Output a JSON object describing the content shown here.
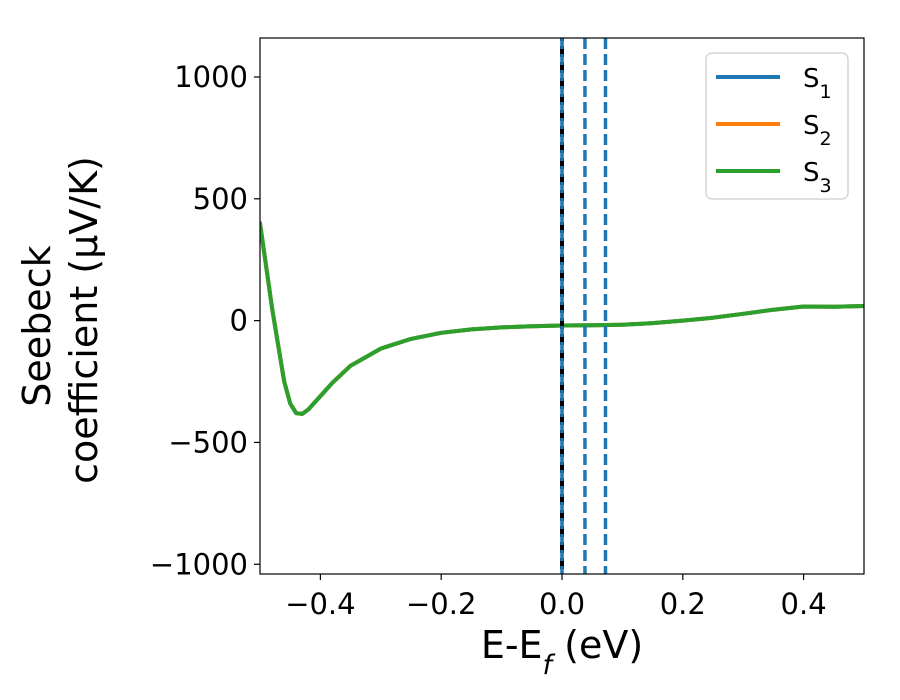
{
  "chart_data": {
    "type": "line",
    "xlabel": "E-E_f (eV)",
    "ylabel": "Seebeck coefficient  (μV/K)",
    "ylabel_lines": [
      "Seebeck",
      "coefficient  (μV/K)"
    ],
    "xlim": [
      -0.5,
      0.5
    ],
    "ylim": [
      -1040,
      1160
    ],
    "x_ticks": [
      -0.4,
      -0.2,
      0.0,
      0.2,
      0.4
    ],
    "x_tick_labels": [
      "−0.4",
      "−0.2",
      "0.0",
      "0.2",
      "0.4"
    ],
    "y_ticks": [
      1000,
      500,
      0,
      -500,
      -1000
    ],
    "y_tick_labels": [
      "1000",
      "500",
      "0",
      "−500",
      "−1000"
    ],
    "grid": false,
    "legend_position": "top-right",
    "vertical_lines": [
      {
        "x": 0.0,
        "style": "dashed",
        "color": "#000000"
      },
      {
        "x": 0.0,
        "style": "dashed",
        "color": "#1f77b4"
      },
      {
        "x": 0.038,
        "style": "dashed",
        "color": "#1f77b4"
      },
      {
        "x": 0.072,
        "style": "dashed",
        "color": "#1f77b4"
      }
    ],
    "x": [
      -0.5,
      -0.48,
      -0.46,
      -0.45,
      -0.44,
      -0.43,
      -0.42,
      -0.4,
      -0.38,
      -0.35,
      -0.3,
      -0.25,
      -0.2,
      -0.15,
      -0.1,
      -0.05,
      0.0,
      0.05,
      0.1,
      0.15,
      0.2,
      0.25,
      0.3,
      0.35,
      0.4,
      0.45,
      0.5
    ],
    "series": [
      {
        "name": "S_1",
        "sub": "1",
        "color": "#1f77b4",
        "values": [
          400,
          50,
          -250,
          -340,
          -380,
          -383,
          -365,
          -310,
          -255,
          -185,
          -115,
          -75,
          -50,
          -36,
          -28,
          -23,
          -20,
          -19,
          -17,
          -10,
          0,
          12,
          28,
          45,
          58,
          57,
          60
        ]
      },
      {
        "name": "S_2",
        "sub": "2",
        "color": "#ff7f0e",
        "values": [
          400,
          50,
          -250,
          -340,
          -380,
          -383,
          -365,
          -310,
          -255,
          -185,
          -115,
          -75,
          -50,
          -36,
          -28,
          -23,
          -20,
          -19,
          -17,
          -10,
          0,
          12,
          28,
          45,
          58,
          57,
          60
        ]
      },
      {
        "name": "S_3",
        "sub": "3",
        "color": "#2ca02c",
        "values": [
          400,
          50,
          -250,
          -340,
          -380,
          -383,
          -365,
          -310,
          -255,
          -185,
          -115,
          -75,
          -50,
          -36,
          -28,
          -23,
          -20,
          -19,
          -17,
          -10,
          0,
          12,
          28,
          45,
          58,
          57,
          60
        ]
      }
    ]
  }
}
